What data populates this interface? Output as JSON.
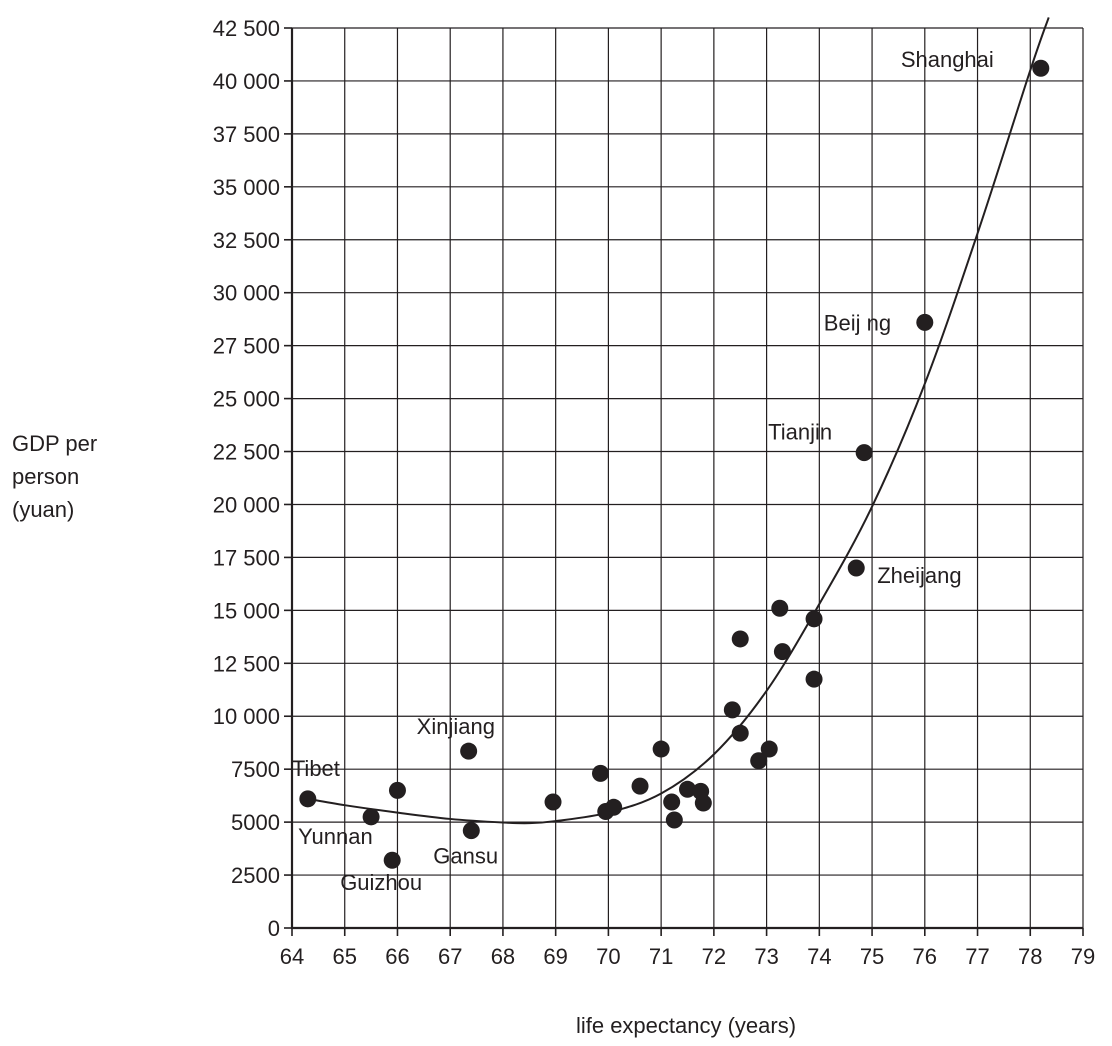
{
  "chart_data": {
    "type": "scatter",
    "title": "",
    "xlabel": "life expectancy (years)",
    "ylabel_lines": [
      "GDP per",
      "person",
      "(yuan)"
    ],
    "xlim": [
      64,
      79
    ],
    "ylim": [
      0,
      42500
    ],
    "xticks": [
      64,
      65,
      66,
      67,
      68,
      69,
      70,
      71,
      72,
      73,
      74,
      75,
      76,
      77,
      78,
      79
    ],
    "xtick_labels": [
      "64",
      "65",
      "66",
      "67",
      "68",
      "69",
      "70",
      "71",
      "72",
      "73",
      "74",
      "75",
      "76",
      "77",
      "78",
      "79"
    ],
    "yticks": [
      0,
      2500,
      5000,
      7500,
      10000,
      12500,
      15000,
      17500,
      20000,
      22500,
      25000,
      27500,
      30000,
      32500,
      35000,
      37500,
      40000,
      42500
    ],
    "ytick_labels": [
      "0",
      "2500",
      "5000",
      "7500",
      "10 000",
      "12 500",
      "15 000",
      "17 500",
      "20 000",
      "22 500",
      "25 000",
      "27 500",
      "30 000",
      "32 500",
      "35 000",
      "37 500",
      "40 000",
      "42 500"
    ],
    "grid": true,
    "points": [
      {
        "x": 64.3,
        "y": 6100,
        "label": "Tibet"
      },
      {
        "x": 65.5,
        "y": 5250,
        "label": "Yunnan"
      },
      {
        "x": 65.9,
        "y": 3200,
        "label": "Guizhou"
      },
      {
        "x": 66.0,
        "y": 6500,
        "label": ""
      },
      {
        "x": 67.35,
        "y": 8350,
        "label": "Xinjiang"
      },
      {
        "x": 67.4,
        "y": 4600,
        "label": "Gansu"
      },
      {
        "x": 68.95,
        "y": 5950,
        "label": ""
      },
      {
        "x": 69.85,
        "y": 7300,
        "label": ""
      },
      {
        "x": 69.95,
        "y": 5500,
        "label": ""
      },
      {
        "x": 70.1,
        "y": 5700,
        "label": ""
      },
      {
        "x": 70.6,
        "y": 6700,
        "label": ""
      },
      {
        "x": 71.0,
        "y": 8450,
        "label": ""
      },
      {
        "x": 71.2,
        "y": 5950,
        "label": ""
      },
      {
        "x": 71.25,
        "y": 5100,
        "label": ""
      },
      {
        "x": 71.5,
        "y": 6550,
        "label": ""
      },
      {
        "x": 71.75,
        "y": 6450,
        "label": ""
      },
      {
        "x": 71.8,
        "y": 5900,
        "label": ""
      },
      {
        "x": 72.35,
        "y": 10300,
        "label": ""
      },
      {
        "x": 72.5,
        "y": 13650,
        "label": ""
      },
      {
        "x": 72.5,
        "y": 9200,
        "label": ""
      },
      {
        "x": 72.85,
        "y": 7900,
        "label": ""
      },
      {
        "x": 73.05,
        "y": 8450,
        "label": ""
      },
      {
        "x": 73.25,
        "y": 15100,
        "label": ""
      },
      {
        "x": 73.3,
        "y": 13050,
        "label": ""
      },
      {
        "x": 73.9,
        "y": 14600,
        "label": ""
      },
      {
        "x": 73.9,
        "y": 11750,
        "label": ""
      },
      {
        "x": 74.7,
        "y": 17000,
        "label": "Zheijang"
      },
      {
        "x": 74.85,
        "y": 22450,
        "label": "Tianjin"
      },
      {
        "x": 76.0,
        "y": 28600,
        "label": "Beij ng"
      },
      {
        "x": 78.2,
        "y": 40600,
        "label": "Shanghai"
      }
    ],
    "trend_curve": [
      {
        "x": 64.3,
        "y": 6100
      },
      {
        "x": 65.0,
        "y": 5800
      },
      {
        "x": 66.0,
        "y": 5450
      },
      {
        "x": 67.0,
        "y": 5150
      },
      {
        "x": 68.0,
        "y": 4980
      },
      {
        "x": 68.5,
        "y": 4950
      },
      {
        "x": 69.0,
        "y": 5050
      },
      {
        "x": 70.0,
        "y": 5450
      },
      {
        "x": 71.0,
        "y": 6350
      },
      {
        "x": 72.0,
        "y": 8200
      },
      {
        "x": 73.0,
        "y": 11200
      },
      {
        "x": 74.0,
        "y": 15300
      },
      {
        "x": 75.0,
        "y": 19900
      },
      {
        "x": 76.0,
        "y": 25700
      },
      {
        "x": 77.0,
        "y": 32800
      },
      {
        "x": 78.0,
        "y": 40500
      },
      {
        "x": 78.35,
        "y": 43000
      }
    ]
  }
}
